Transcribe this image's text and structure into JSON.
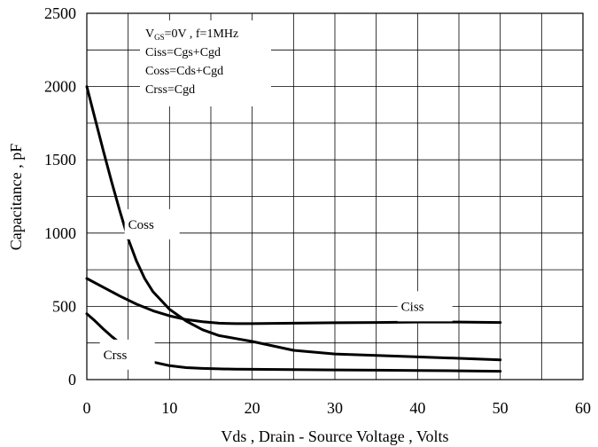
{
  "chart_data": {
    "type": "line",
    "xlabel": "Vds , Drain - Source Voltage , Volts",
    "ylabel": "Capacitance , pF",
    "xlim": [
      0,
      60
    ],
    "ylim": [
      0,
      2500
    ],
    "xticks": [
      0,
      10,
      20,
      30,
      40,
      50,
      60
    ],
    "yticks": [
      0,
      500,
      1000,
      1500,
      2000,
      2500
    ],
    "grid": true,
    "legend": {
      "position": "top-left",
      "conditions": {
        "v": "V",
        "gs": "GS",
        "rest": "=0V , f=1MHz"
      },
      "lines": [
        "Ciss=Cgs+Cgd",
        "Coss=Cds+Cgd",
        "Crss=Cgd"
      ]
    },
    "series": [
      {
        "name": "Coss",
        "label_at": [
          5,
          1030
        ],
        "x": [
          0,
          1,
          2,
          3,
          4,
          5,
          6,
          7,
          8,
          10,
          12,
          14,
          16,
          18,
          20,
          25,
          30,
          35,
          40,
          45,
          50
        ],
        "y": [
          2000,
          1780,
          1560,
          1350,
          1150,
          960,
          810,
          690,
          600,
          480,
          400,
          340,
          300,
          280,
          260,
          200,
          175,
          165,
          155,
          145,
          135
        ]
      },
      {
        "name": "Ciss",
        "label_at": [
          38,
          470
        ],
        "x": [
          0,
          2,
          4,
          6,
          8,
          10,
          12,
          14,
          16,
          18,
          20,
          25,
          30,
          35,
          40,
          45,
          50
        ],
        "y": [
          690,
          630,
          570,
          515,
          470,
          435,
          410,
          395,
          385,
          382,
          382,
          385,
          388,
          390,
          393,
          393,
          390
        ]
      },
      {
        "name": "Crss",
        "label_at": [
          2,
          140
        ],
        "x": [
          0,
          1,
          2,
          3,
          4,
          5,
          6,
          7,
          8,
          10,
          12,
          14,
          16,
          18,
          20,
          25,
          30,
          35,
          40,
          45,
          50
        ],
        "y": [
          450,
          400,
          345,
          295,
          250,
          210,
          175,
          145,
          120,
          95,
          82,
          76,
          73,
          71,
          70,
          68,
          66,
          64,
          62,
          60,
          57
        ]
      }
    ]
  }
}
